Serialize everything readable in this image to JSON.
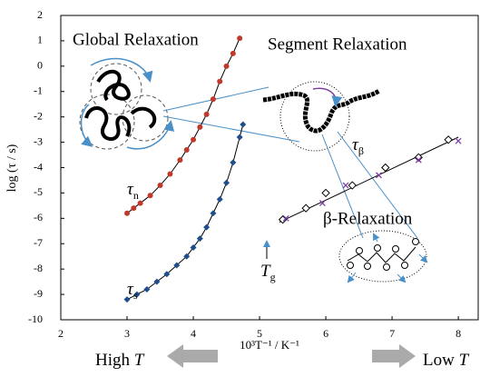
{
  "chart_data": {
    "type": "scatter",
    "x_label": "10³T⁻¹ / K⁻¹",
    "y_label": "log (τ / s)",
    "xlim": [
      2,
      8.3
    ],
    "ylim": [
      -10,
      2
    ],
    "xticks": [
      2,
      3,
      4,
      5,
      6,
      7,
      8
    ],
    "yticks": [
      -10,
      -9,
      -8,
      -7,
      -6,
      -5,
      -4,
      -3,
      -2,
      -1,
      0,
      1,
      2
    ],
    "series": [
      {
        "label": "τ",
        "label_sub": "n",
        "color": "#c0392b",
        "marker": "circle",
        "fit_color": "#000",
        "x": [
          3.0,
          3.1,
          3.2,
          3.35,
          3.5,
          3.65,
          3.8,
          3.9,
          4.0,
          4.1,
          4.2,
          4.3,
          4.4,
          4.5,
          4.6,
          4.7
        ],
        "values": [
          -5.8,
          -5.6,
          -5.4,
          -5.1,
          -4.7,
          -4.25,
          -3.7,
          -3.3,
          -2.9,
          -2.4,
          -1.9,
          -1.3,
          -0.6,
          0.0,
          0.5,
          1.1
        ]
      },
      {
        "label": "τ",
        "label_sub": "s",
        "color": "#1f4e8c",
        "marker": "diamond",
        "fit_color": "#000",
        "x": [
          3.0,
          3.15,
          3.3,
          3.45,
          3.6,
          3.75,
          3.9,
          4.0,
          4.1,
          4.2,
          4.3,
          4.4,
          4.5,
          4.6,
          4.7,
          4.75
        ],
        "values": [
          -9.2,
          -9.0,
          -8.8,
          -8.5,
          -8.2,
          -7.85,
          -7.5,
          -7.15,
          -6.8,
          -6.35,
          -5.8,
          -5.25,
          -4.6,
          -3.8,
          -2.8,
          -2.3
        ]
      },
      {
        "label": "τ",
        "label_sub": "β",
        "color": "#000",
        "marker": "open-diamond",
        "x": [
          5.35,
          5.7,
          6.0,
          6.4,
          6.9,
          7.4,
          7.85
        ],
        "values": [
          -6.05,
          -5.6,
          -5.0,
          -4.7,
          -4.0,
          -3.6,
          -2.9
        ]
      },
      {
        "color": "#7b3fa0",
        "marker": "cross",
        "x": [
          5.4,
          5.95,
          6.3,
          6.8,
          7.4,
          8.0
        ],
        "values": [
          -6.0,
          -5.4,
          -4.7,
          -4.3,
          -3.7,
          -2.95
        ]
      }
    ],
    "beta_fit": {
      "x": [
        5.3,
        8.0
      ],
      "values": [
        -6.15,
        -2.8
      ],
      "color": "#000"
    },
    "annotations": {
      "global": "Global Relaxation",
      "segment": "Segment Relaxation",
      "beta": "β-Relaxation",
      "tg_var": "T",
      "tg_sub": "g",
      "high": "High",
      "high_var": "T",
      "low": "Low",
      "low_var": "T"
    }
  }
}
